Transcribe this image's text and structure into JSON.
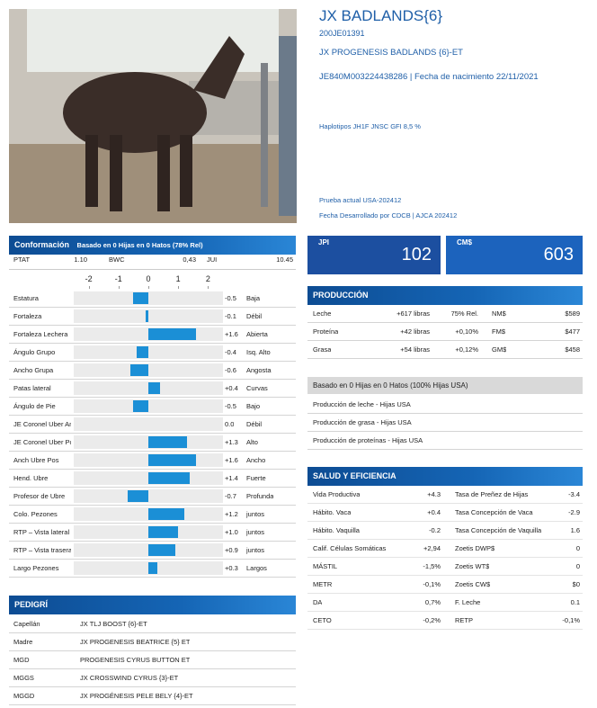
{
  "header": {
    "title": "JX BADLANDS{6}",
    "code": "200JE01391",
    "registered_name": "JX PROGENESIS BADLANDS {6}-ET",
    "id_line": "JE840M003224438286 | Fecha de nacimiento 22/11/2021",
    "haplotypes": "Haplotipos JH1F JNSC GFI 8,5 %",
    "test": "Prueba actual USA-202412",
    "developed": "Fecha Desarrollado por CDCB | AJCA 202412"
  },
  "indexes": [
    {
      "label": "JPI",
      "value": 102
    },
    {
      "label": "CM$",
      "value": 603
    }
  ],
  "conformation": {
    "title": "Conformación",
    "subtitle": "Basado en 0 Hijas en 0 Hatos (78% Rel)",
    "summary": [
      [
        "PTAT",
        "1.10"
      ],
      [
        "BWC",
        "0,43"
      ],
      [
        "JUI",
        "10.45"
      ]
    ],
    "xlim": [
      -2.5,
      2.5
    ],
    "ticks": [
      -2,
      -1,
      0,
      1,
      2
    ],
    "bar_color": "#1b8fd6",
    "traits": [
      {
        "name": "Estatura",
        "value": -0.5,
        "label": "-0.5",
        "descriptor": "Baja"
      },
      {
        "name": "Fortaleza",
        "value": -0.1,
        "label": "-0.1",
        "descriptor": "Débil"
      },
      {
        "name": "Fortaleza Lechera",
        "value": 1.6,
        "label": "+1.6",
        "descriptor": "Abierta"
      },
      {
        "name": "Ángulo Grupo",
        "value": -0.4,
        "label": "-0.4",
        "descriptor": "Isq. Alto"
      },
      {
        "name": "Ancho Grupa",
        "value": -0.6,
        "label": "-0.6",
        "descriptor": "Angosta"
      },
      {
        "name": "Patas lateral",
        "value": 0.4,
        "label": "+0.4",
        "descriptor": "Curvas"
      },
      {
        "name": "Ángulo de Pie",
        "value": -0.5,
        "label": "-0.5",
        "descriptor": "Bajo"
      },
      {
        "name": "JE Coronel Uber An",
        "value": 0,
        "label": "0.0",
        "descriptor": "Débil"
      },
      {
        "name": "JE Coronel Uber Po",
        "value": 1.3,
        "label": "+1.3",
        "descriptor": "Alto"
      },
      {
        "name": "Anch Ubre Pos",
        "value": 1.6,
        "label": "+1.6",
        "descriptor": "Ancho"
      },
      {
        "name": "Hend. Ubre",
        "value": 1.4,
        "label": "+1.4",
        "descriptor": "Fuerte"
      },
      {
        "name": "Profesor de Ubre",
        "value": -0.7,
        "label": "-0.7",
        "descriptor": "Profunda"
      },
      {
        "name": "Colo. Pezones",
        "value": 1.2,
        "label": "+1.2",
        "descriptor": "juntos"
      },
      {
        "name": "RTP – Vista lateral",
        "value": 1.0,
        "label": "+1.0",
        "descriptor": "juntos"
      },
      {
        "name": "RTP – Vista trasera",
        "value": 0.9,
        "label": "+0.9",
        "descriptor": "juntos"
      },
      {
        "name": "Largo Pezones",
        "value": 0.3,
        "label": "+0.3",
        "descriptor": "Largos"
      }
    ]
  },
  "pedigree": {
    "title": "PEDIGRÍ",
    "rows": [
      [
        "Capellán",
        "JX TLJ BOOST {6}-ET"
      ],
      [
        "Madre",
        "JX PROGENESIS BEATRICE {5} ET"
      ],
      [
        "MGD",
        "PROGENESIS CYRUS BUTTON ET"
      ],
      [
        "MGGS",
        "JX CROSSWIND CYRUS {3}-ET"
      ],
      [
        "MGGD",
        "JX PROGÉNESIS PELE BELY {4}-ET"
      ]
    ]
  },
  "production": {
    "title": "PRODUCCIÓN",
    "rows": [
      [
        "Leche",
        "+617 libras",
        "75% Rel.",
        "NM$",
        "$589"
      ],
      [
        "Proteína",
        "+42 libras",
        "+0,10%",
        "FM$",
        "$477"
      ],
      [
        "Grasa",
        "+54 libras",
        "+0,12%",
        "GM$",
        "$458"
      ]
    ]
  },
  "daughters": {
    "title": "Basado en 0 Hijas en 0 Hatos (100% Hijas USA)",
    "rows": [
      "Producción de leche - Hijas USA",
      "Producción de grasa - Hijas USA",
      "Producción de proteínas - Hijas USA"
    ]
  },
  "health": {
    "title": "SALUD Y EFICIENCIA",
    "rows": [
      [
        "Vida Productiva",
        "+4.3",
        "Tasa de Preñez de Hijas",
        "-3.4"
      ],
      [
        "Hábito. Vaca",
        "+0.4",
        "Tasa Concepción de Vaca",
        "-2.9"
      ],
      [
        "Hábito. Vaquilla",
        "-0.2",
        "Tasa Concepción de Vaquilla",
        "1.6"
      ],
      [
        "Calif. Células Somáticas",
        "+2,94",
        "Zoetis DWP$",
        "0"
      ],
      [
        "MÁSTIL",
        "-1,5%",
        "Zoetis WT$",
        "0"
      ],
      [
        "METR",
        "-0,1%",
        "Zoetis CW$",
        "$0"
      ],
      [
        "DA",
        "0,7%",
        "F. Leche",
        "0.1"
      ],
      [
        "CETO",
        "-0,2%",
        "RETP",
        "-0,1%"
      ]
    ]
  }
}
